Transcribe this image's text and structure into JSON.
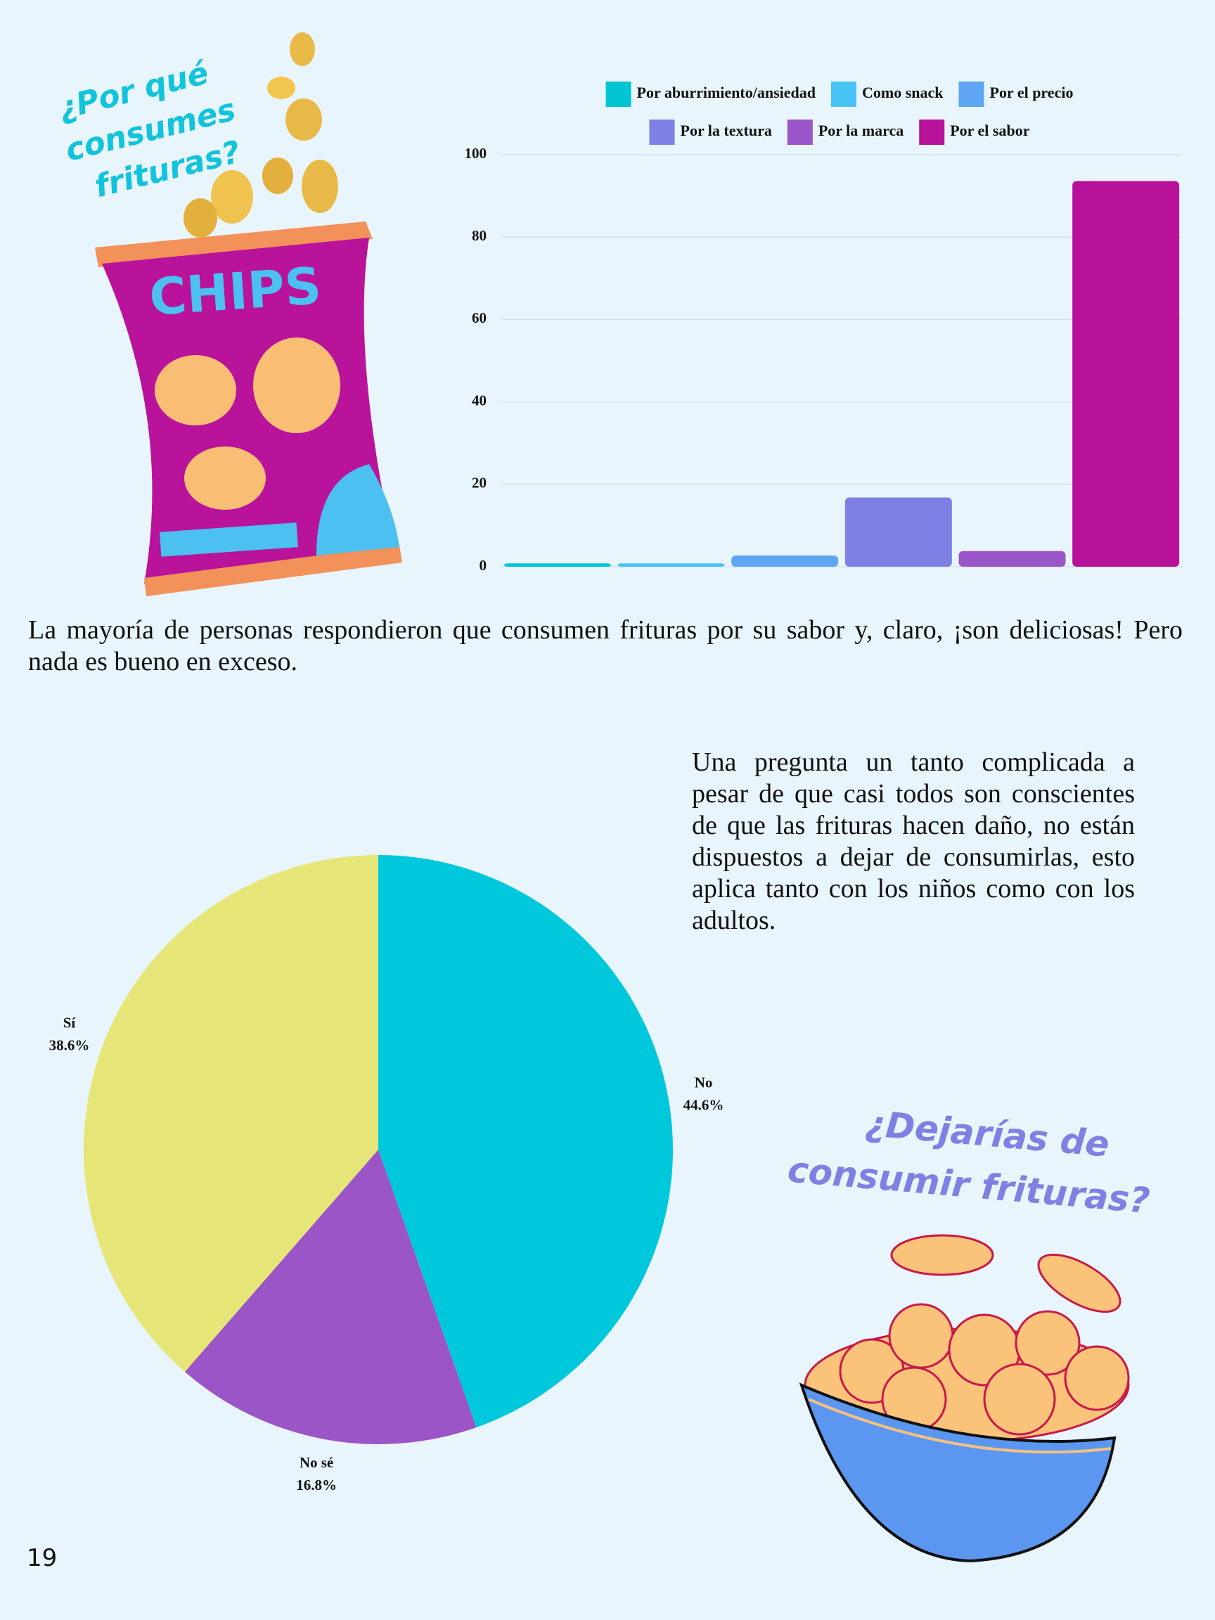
{
  "heading_1": [
    "¿Por qué",
    "consumes",
    "frituras?"
  ],
  "bag_label": "CHIPS",
  "paragraph_1": "La mayoría de personas respondieron que consumen frituras por su sabor y, claro, ¡son deliciosas! Pero nada es bueno en exceso.",
  "paragraph_2": "Una pregunta un tanto complicada a pesar de que casi todos son conscientes de que las frituras hacen daño, no están dispuestos a dejar de consumirlas, esto aplica tanto con los niños como con los adultos.",
  "heading_2": [
    "¿Dejarías de",
    "consumir frituras?"
  ],
  "page_number": "19",
  "chart_data": [
    {
      "type": "bar",
      "categories": [
        "Por aburrimiento/ansiedad",
        "Como snack",
        "Por el precio",
        "Por la textura",
        "Por la marca",
        "Por el sabor"
      ],
      "values": [
        0.8,
        0.8,
        2.7,
        16.8,
        3.8,
        93.6
      ],
      "colors": [
        "#00c4d4",
        "#47c2f5",
        "#5ea6f3",
        "#7f80e3",
        "#9a55c8",
        "#b8119a"
      ],
      "ylim": [
        0,
        100
      ],
      "yticks": [
        0,
        20,
        40,
        60,
        80,
        100
      ],
      "grid": true
    },
    {
      "type": "pie",
      "categories": [
        "No",
        "No sé",
        "Sí"
      ],
      "values": [
        44.6,
        16.8,
        38.6
      ],
      "value_labels": [
        "44.6%",
        "16.8%",
        "38.6%"
      ],
      "colors": [
        "#00c8dc",
        "#9b55c6",
        "#e6e678"
      ]
    }
  ]
}
